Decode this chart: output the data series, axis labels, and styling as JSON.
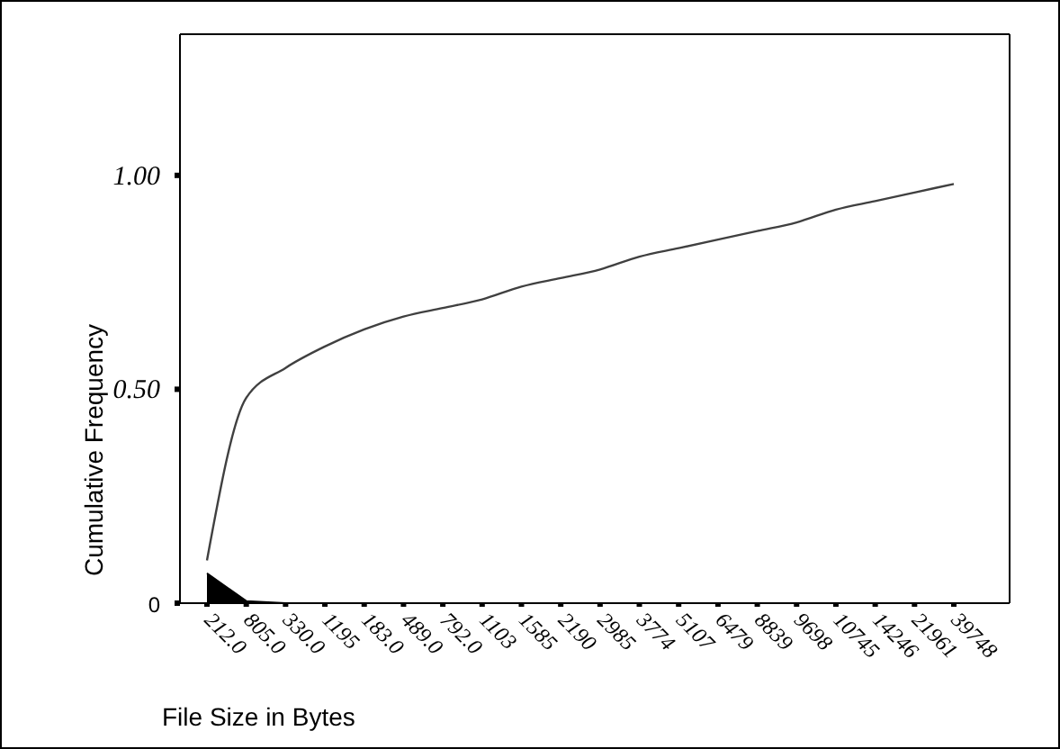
{
  "chart_data": {
    "type": "line",
    "xlabel": "File Size in Bytes",
    "ylabel": "Cumulative Frequency",
    "categories": [
      "212.0",
      "805.0",
      "330.0",
      "1195",
      "183.0",
      "489.0",
      "792.0",
      "1103",
      "1585",
      "2190",
      "2985",
      "3774",
      "5107",
      "6479",
      "8839",
      "9698",
      "10745",
      "14246",
      "21961",
      "39748"
    ],
    "series": [
      {
        "color": "#404040",
        "values": [
          0.1,
          0.48,
          0.55,
          0.6,
          0.64,
          0.67,
          0.69,
          0.71,
          0.74,
          0.76,
          0.78,
          0.81,
          0.83,
          0.85,
          0.87,
          0.89,
          0.92,
          0.94,
          0.96,
          0.98
        ]
      },
      {
        "type": "area",
        "color": "#000000",
        "values": [
          0.07,
          0.005,
          0,
          0,
          0,
          0,
          0,
          0,
          0,
          0,
          0,
          0,
          0,
          0,
          0,
          0,
          0,
          0,
          0,
          0
        ]
      }
    ],
    "ylim": [
      0,
      1.33
    ],
    "yticks": [
      {
        "value": 0,
        "label": "0"
      },
      {
        "value": 0.5,
        "label": "0.50"
      },
      {
        "value": 1,
        "label": "1.00"
      }
    ],
    "marker": "none"
  }
}
